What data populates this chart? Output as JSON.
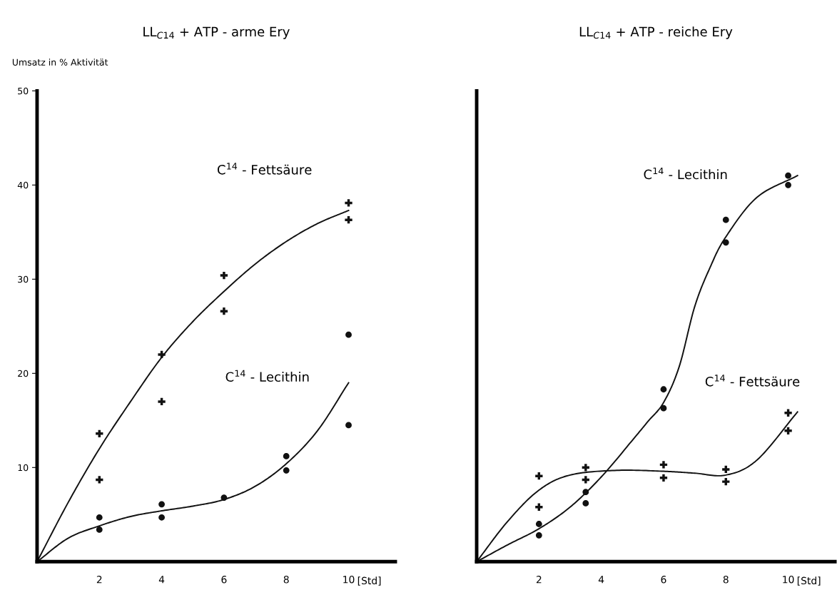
{
  "chart_data": [
    {
      "type": "line",
      "title": "LL$_{C14}$ + ATP - arme Ery",
      "ylabel": "Umsatz in % Aktivität",
      "xlabel": "[Std]",
      "xlim": [
        0,
        11.5
      ],
      "ylim": [
        0,
        50
      ],
      "xticks": [
        2,
        4,
        6,
        8,
        10
      ],
      "yticks": [
        10,
        20,
        30,
        40,
        50
      ],
      "grid": false,
      "series": [
        {
          "type": "scatter",
          "marker": "cross",
          "color": "#111111",
          "x": [
            2,
            2,
            4,
            4,
            6,
            6,
            10,
            10
          ],
          "values": [
            13.6,
            8.7,
            22,
            17,
            30.4,
            26.6,
            38.1,
            36.3
          ]
        },
        {
          "type": "scatter",
          "marker": "circle",
          "color": "#111111",
          "x": [
            2,
            2,
            4,
            4,
            6,
            8,
            8,
            10,
            10
          ],
          "values": [
            4.7,
            3.4,
            6.1,
            4.7,
            6.8,
            11.2,
            9.7,
            24.1,
            14.5
          ]
        },
        {
          "marker": "none",
          "line_style": "solid",
          "color": "#111111",
          "x": [
            0,
            1,
            2,
            3,
            4,
            5,
            6,
            7,
            8,
            9,
            10
          ],
          "values": [
            0,
            6.3,
            12.0,
            17.0,
            21.7,
            25.5,
            28.7,
            31.6,
            34.0,
            35.9,
            37.3
          ]
        },
        {
          "marker": "none",
          "line_style": "solid",
          "color": "#111111",
          "x": [
            0,
            1,
            2,
            3,
            4,
            5,
            6,
            7,
            8,
            9,
            10
          ],
          "values": [
            0,
            2.5,
            3.8,
            4.8,
            5.4,
            5.9,
            6.6,
            8.0,
            10.4,
            13.9,
            19.0
          ]
        }
      ],
      "annotations": [
        "C$^{14}$ - Fettsäure",
        "C$^{14}$ - Lecithin"
      ],
      "legend": false
    },
    {
      "type": "line",
      "title": "LL$_{C14}$ + ATP - reiche Ery",
      "xlabel": "[Std]",
      "xlim": [
        0,
        11.5
      ],
      "ylim": [
        0,
        50
      ],
      "xticks": [
        2,
        4,
        6,
        8,
        10
      ],
      "yticks": [
        10,
        20,
        30,
        40,
        50
      ],
      "tick_labels": "x",
      "grid": false,
      "series": [
        {
          "type": "scatter",
          "marker": "circle",
          "color": "#111111",
          "x": [
            2,
            2,
            3.5,
            3.5,
            6,
            6,
            8,
            8,
            10,
            10
          ],
          "values": [
            4.0,
            2.8,
            7.4,
            6.2,
            18.3,
            16.3,
            36.3,
            33.9,
            41.0,
            40.0
          ]
        },
        {
          "type": "scatter",
          "marker": "cross",
          "color": "#111111",
          "x": [
            2,
            2,
            3.5,
            3.5,
            6,
            6,
            8,
            8,
            10,
            10
          ],
          "values": [
            9.1,
            5.8,
            10.0,
            8.7,
            10.3,
            8.9,
            9.8,
            8.5,
            15.8,
            13.9
          ]
        },
        {
          "marker": "none",
          "line_style": "solid",
          "color": "#111111",
          "x": [
            0,
            1,
            2,
            3,
            4,
            5,
            5.5,
            6,
            6.5,
            7,
            7.5,
            8,
            9,
            10.3
          ],
          "values": [
            0,
            1.8,
            3.5,
            5.8,
            9.0,
            12.9,
            14.9,
            16.9,
            20.7,
            27.1,
            31.3,
            34.5,
            38.7,
            41.0
          ]
        },
        {
          "marker": "none",
          "line_style": "solid",
          "color": "#111111",
          "x": [
            0,
            1,
            2,
            3,
            4.5,
            6,
            7,
            8,
            9,
            10.3
          ],
          "values": [
            0,
            4.3,
            7.6,
            9.2,
            9.7,
            9.6,
            9.4,
            9.2,
            10.8,
            15.9
          ]
        }
      ],
      "annotations": [
        "C$^{14}$ - Lecithin",
        "C$^{14}$ - Fettsäure"
      ],
      "legend": false
    }
  ]
}
